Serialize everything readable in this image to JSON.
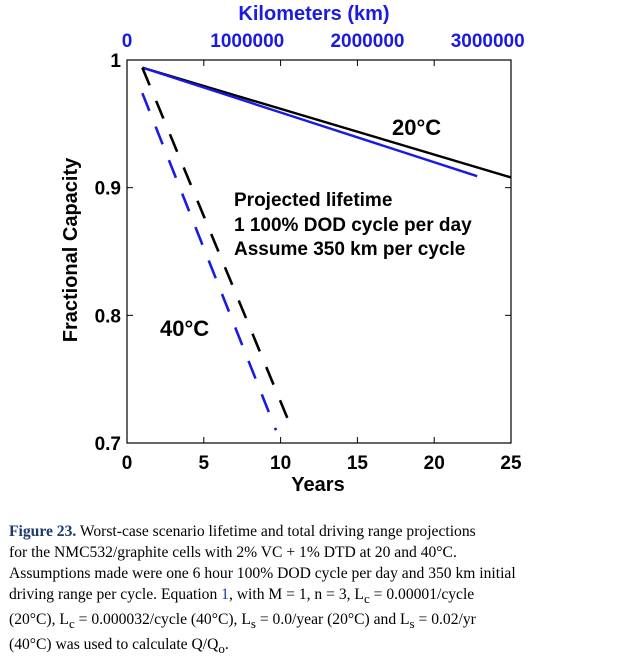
{
  "chart_data": {
    "type": "line",
    "xlabel": "Years",
    "ylabel": "Fractional Capacity",
    "top_axis_label": "Kilometers (km)",
    "xlim": [
      0,
      25
    ],
    "ylim": [
      0.7,
      1.0
    ],
    "top_xlim_km": [
      0,
      3193750
    ],
    "x_ticks": [
      "0",
      "5",
      "10",
      "15",
      "20",
      "25"
    ],
    "x_tick_values": [
      0,
      5,
      10,
      15,
      20,
      25
    ],
    "y_ticks": [
      "0.7",
      "0.8",
      "0.9",
      "1"
    ],
    "y_tick_values": [
      0.7,
      0.8,
      0.9,
      1.0
    ],
    "top_ticks": [
      "0",
      "1000000",
      "2000000",
      "3000000"
    ],
    "top_tick_values_km": [
      0,
      1000000,
      2000000,
      3000000
    ],
    "series": [
      {
        "name": "20°C projection (black)",
        "style": "solid",
        "color": "#000000",
        "x": [
          1,
          25
        ],
        "y": [
          0.994,
          0.908
        ]
      },
      {
        "name": "20°C projection (blue)",
        "style": "solid",
        "color": "#1a1ae0",
        "x": [
          1,
          22.8
        ],
        "y": [
          0.994,
          0.909
        ]
      },
      {
        "name": "40°C projection (black)",
        "style": "dashed",
        "color": "#000000",
        "x": [
          1,
          10.7
        ],
        "y": [
          0.994,
          0.712
        ]
      },
      {
        "name": "40°C projection (blue)",
        "style": "dashed",
        "color": "#1a1ae0",
        "x": [
          1,
          9.7
        ],
        "y": [
          0.974,
          0.71
        ]
      }
    ],
    "annotations": {
      "label_20c": "20°C",
      "label_40c": "40°C",
      "projection_lines": [
        "Projected lifetime",
        "1 100% DOD cycle per day",
        "Assume 350 km per cycle"
      ]
    }
  },
  "caption": {
    "heading": "Figure 23.",
    "lines": [
      " Worst-case scenario lifetime and total driving range projections",
      "for the NMC532/graphite cells with 2% VC + 1% DTD at 20 and 40°C.",
      "Assumptions made were one 6 hour 100% DOD cycle per day and 350 km initial",
      "driving range per cycle. Equation ",
      "1",
      ", with M = 1, n = 3, L",
      "c",
      " = 0.00001/cycle",
      "(20°C), L",
      "c",
      " = 0.000032/cycle (40°C), L",
      "s",
      " = 0.0/year (20°C) and L",
      "s",
      " = 0.02/yr",
      "(40°C) was used to calculate Q/Q",
      "o",
      "."
    ]
  }
}
